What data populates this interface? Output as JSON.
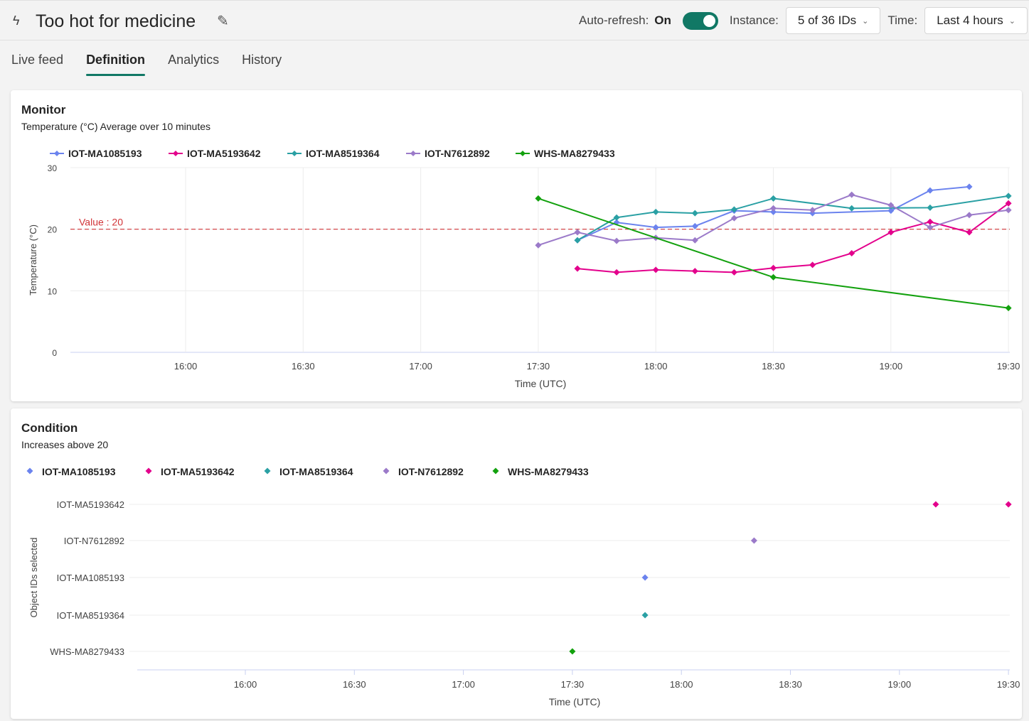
{
  "header": {
    "title": "Too hot for medicine",
    "auto_refresh_label": "Auto-refresh:",
    "auto_refresh_value": "On",
    "instance_label": "Instance:",
    "instance_value": "5 of 36 IDs",
    "time_label": "Time:",
    "time_value": "Last 4 hours"
  },
  "tabs": [
    {
      "label": "Live feed"
    },
    {
      "label": "Definition",
      "active": true
    },
    {
      "label": "Analytics"
    },
    {
      "label": "History"
    }
  ],
  "monitor": {
    "title": "Monitor",
    "subtitle": "Temperature (°C) Average over 10 minutes"
  },
  "condition": {
    "title": "Condition",
    "subtitle": "Increases above 20"
  },
  "chart_data": [
    {
      "type": "line",
      "ylabel": "Temperature (°C)",
      "xlabel": "Time (UTC)",
      "ylim": [
        0,
        30
      ],
      "yticks": [
        "0",
        "10",
        "20",
        "30"
      ],
      "xticks": [
        "16:00",
        "16:30",
        "17:00",
        "17:30",
        "18:00",
        "18:30",
        "19:00",
        "19:30"
      ],
      "threshold": {
        "label": "Value : 20",
        "value": 20,
        "color": "#d13438"
      },
      "series": [
        {
          "name": "IOT-MA1085193",
          "color": "#6b83ee",
          "points": [
            [
              "17:40",
              18.2
            ],
            [
              "17:50",
              21.1
            ],
            [
              "18:00",
              20.3
            ],
            [
              "18:10",
              20.5
            ],
            [
              "18:20",
              23.0
            ],
            [
              "18:30",
              22.8
            ],
            [
              "18:40",
              22.6
            ],
            [
              "19:00",
              23.0
            ],
            [
              "19:10",
              26.3
            ],
            [
              "19:20",
              26.9
            ]
          ]
        },
        {
          "name": "IOT-MA5193642",
          "color": "#e3008c",
          "points": [
            [
              "17:40",
              13.6
            ],
            [
              "17:50",
              13.0
            ],
            [
              "18:00",
              13.4
            ],
            [
              "18:10",
              13.2
            ],
            [
              "18:20",
              13.0
            ],
            [
              "18:30",
              13.7
            ],
            [
              "18:40",
              14.2
            ],
            [
              "18:50",
              16.1
            ],
            [
              "19:00",
              19.5
            ],
            [
              "19:10",
              21.2
            ],
            [
              "19:20",
              19.5
            ],
            [
              "19:30",
              24.2
            ]
          ]
        },
        {
          "name": "IOT-MA8519364",
          "color": "#2aa0a4",
          "points": [
            [
              "17:40",
              18.2
            ],
            [
              "17:50",
              21.9
            ],
            [
              "18:00",
              22.8
            ],
            [
              "18:10",
              22.6
            ],
            [
              "18:20",
              23.2
            ],
            [
              "18:30",
              25.0
            ],
            [
              "18:50",
              23.4
            ],
            [
              "19:10",
              23.5
            ],
            [
              "19:30",
              25.4
            ]
          ]
        },
        {
          "name": "IOT-N7612892",
          "color": "#9b7ac9",
          "points": [
            [
              "17:30",
              17.4
            ],
            [
              "17:40",
              19.5
            ],
            [
              "17:50",
              18.1
            ],
            [
              "18:00",
              18.6
            ],
            [
              "18:10",
              18.2
            ],
            [
              "18:20",
              21.8
            ],
            [
              "18:30",
              23.4
            ],
            [
              "18:40",
              23.1
            ],
            [
              "18:50",
              25.6
            ],
            [
              "19:00",
              23.9
            ],
            [
              "19:10",
              20.3
            ],
            [
              "19:20",
              22.3
            ],
            [
              "19:30",
              23.1
            ]
          ]
        },
        {
          "name": "WHS-MA8279433",
          "color": "#13a10e",
          "points": [
            [
              "17:30",
              25.0
            ],
            [
              "18:30",
              12.2
            ],
            [
              "19:30",
              7.2
            ]
          ]
        }
      ]
    },
    {
      "type": "scatter",
      "ylabel": "Object IDs selected",
      "xlabel": "Time (UTC)",
      "xticks": [
        "16:00",
        "16:30",
        "17:00",
        "17:30",
        "18:00",
        "18:30",
        "19:00",
        "19:30"
      ],
      "categories": [
        "IOT-MA5193642",
        "IOT-N7612892",
        "IOT-MA1085193",
        "IOT-MA8519364",
        "WHS-MA8279433"
      ],
      "series": [
        {
          "name": "IOT-MA1085193",
          "color": "#6b83ee",
          "points": [
            [
              "17:50",
              "IOT-MA1085193"
            ]
          ]
        },
        {
          "name": "IOT-MA5193642",
          "color": "#e3008c",
          "points": [
            [
              "19:10",
              "IOT-MA5193642"
            ],
            [
              "19:30",
              "IOT-MA5193642"
            ]
          ]
        },
        {
          "name": "IOT-MA8519364",
          "color": "#2aa0a4",
          "points": [
            [
              "17:50",
              "IOT-MA8519364"
            ]
          ]
        },
        {
          "name": "IOT-N7612892",
          "color": "#9b7ac9",
          "points": [
            [
              "18:20",
              "IOT-N7612892"
            ]
          ]
        },
        {
          "name": "WHS-MA8279433",
          "color": "#13a10e",
          "points": [
            [
              "17:30",
              "WHS-MA8279433"
            ]
          ]
        }
      ]
    }
  ]
}
